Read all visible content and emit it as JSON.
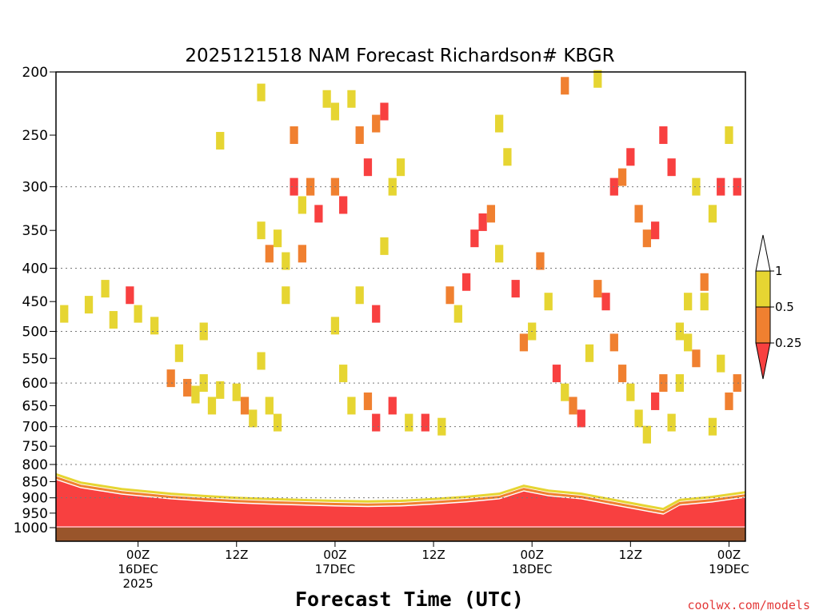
{
  "chart_data": {
    "type": "heatmap",
    "title": "2025121518 NAM Forecast Richardson# KBGR",
    "xlabel": "Forecast Time (UTC)",
    "ylabel": "",
    "credit": "coolwx.com/models",
    "y_scale": "log-pressure",
    "y_axis_inverted": true,
    "ylim_hPa": [
      1030,
      200
    ],
    "yticks": [
      "200",
      "250",
      "300",
      "350",
      "400",
      "450",
      "500",
      "550",
      "600",
      "650",
      "700",
      "750",
      "800",
      "850",
      "900",
      "950",
      "1000"
    ],
    "ytick_values": [
      200,
      250,
      300,
      350,
      400,
      450,
      500,
      550,
      600,
      650,
      700,
      750,
      800,
      850,
      900,
      950,
      1000
    ],
    "gridlines_hPa": [
      300,
      400,
      500,
      600,
      700,
      800,
      900
    ],
    "grid": "dotted",
    "x_unit": "forecast hour",
    "xlim_hours": [
      -4,
      80
    ],
    "xticks": [
      {
        "hour": 6,
        "lines": [
          "00Z",
          "16DEC",
          "2025"
        ]
      },
      {
        "hour": 18,
        "lines": [
          "12Z"
        ]
      },
      {
        "hour": 30,
        "lines": [
          "00Z",
          "17DEC"
        ]
      },
      {
        "hour": 42,
        "lines": [
          "12Z"
        ]
      },
      {
        "hour": 54,
        "lines": [
          "00Z",
          "18DEC"
        ]
      },
      {
        "hour": 66,
        "lines": [
          "12Z"
        ]
      },
      {
        "hour": 78,
        "lines": [
          "00Z",
          "19DEC"
        ]
      }
    ],
    "colorbar": {
      "labels": [
        "1",
        "0.5",
        "0.25"
      ],
      "bins": [
        {
          "range": "> 1",
          "color": "#ffffff"
        },
        {
          "range": "0.5 - 1",
          "color": "#e6d532"
        },
        {
          "range": "0.25 - 0.5",
          "color": "#f08030"
        },
        {
          "range": "< 0.25",
          "color": "#f84040"
        }
      ]
    },
    "boundary_layer_top_hPa": [
      {
        "hour": -4,
        "p": 845
      },
      {
        "hour": -1,
        "p": 870
      },
      {
        "hour": 4,
        "p": 890
      },
      {
        "hour": 10,
        "p": 905
      },
      {
        "hour": 14,
        "p": 912
      },
      {
        "hour": 18,
        "p": 918
      },
      {
        "hour": 22,
        "p": 922
      },
      {
        "hour": 26,
        "p": 925
      },
      {
        "hour": 30,
        "p": 928
      },
      {
        "hour": 34,
        "p": 930
      },
      {
        "hour": 38,
        "p": 928
      },
      {
        "hour": 42,
        "p": 922
      },
      {
        "hour": 46,
        "p": 915
      },
      {
        "hour": 50,
        "p": 905
      },
      {
        "hour": 53,
        "p": 880
      },
      {
        "hour": 56,
        "p": 895
      },
      {
        "hour": 60,
        "p": 905
      },
      {
        "hour": 64,
        "p": 925
      },
      {
        "hour": 68,
        "p": 945
      },
      {
        "hour": 70,
        "p": 955
      },
      {
        "hour": 72,
        "p": 925
      },
      {
        "hour": 76,
        "p": 915
      },
      {
        "hour": 80,
        "p": 900
      }
    ],
    "cells": [
      {
        "hour": -3,
        "p": 470,
        "cat": "y"
      },
      {
        "hour": 0,
        "p": 455,
        "cat": "y"
      },
      {
        "hour": 2,
        "p": 430,
        "cat": "y"
      },
      {
        "hour": 3,
        "p": 480,
        "cat": "y"
      },
      {
        "hour": 5,
        "p": 440,
        "cat": "r"
      },
      {
        "hour": 6,
        "p": 470,
        "cat": "y"
      },
      {
        "hour": 8,
        "p": 490,
        "cat": "y"
      },
      {
        "hour": 10,
        "p": 590,
        "cat": "o"
      },
      {
        "hour": 11,
        "p": 540,
        "cat": "y"
      },
      {
        "hour": 12,
        "p": 610,
        "cat": "o"
      },
      {
        "hour": 13,
        "p": 625,
        "cat": "y"
      },
      {
        "hour": 14,
        "p": 500,
        "cat": "y"
      },
      {
        "hour": 14,
        "p": 600,
        "cat": "y"
      },
      {
        "hour": 15,
        "p": 650,
        "cat": "y"
      },
      {
        "hour": 16,
        "p": 615,
        "cat": "y"
      },
      {
        "hour": 18,
        "p": 620,
        "cat": "y"
      },
      {
        "hour": 19,
        "p": 650,
        "cat": "o"
      },
      {
        "hour": 20,
        "p": 680,
        "cat": "y"
      },
      {
        "hour": 21,
        "p": 555,
        "cat": "y"
      },
      {
        "hour": 22,
        "p": 650,
        "cat": "y"
      },
      {
        "hour": 23,
        "p": 690,
        "cat": "y"
      },
      {
        "hour": 24,
        "p": 440,
        "cat": "y"
      },
      {
        "hour": 21,
        "p": 350,
        "cat": "y"
      },
      {
        "hour": 22,
        "p": 380,
        "cat": "o"
      },
      {
        "hour": 23,
        "p": 360,
        "cat": "y"
      },
      {
        "hour": 24,
        "p": 390,
        "cat": "y"
      },
      {
        "hour": 25,
        "p": 250,
        "cat": "o"
      },
      {
        "hour": 25,
        "p": 300,
        "cat": "r"
      },
      {
        "hour": 26,
        "p": 320,
        "cat": "y"
      },
      {
        "hour": 26,
        "p": 380,
        "cat": "o"
      },
      {
        "hour": 27,
        "p": 300,
        "cat": "o"
      },
      {
        "hour": 28,
        "p": 330,
        "cat": "r"
      },
      {
        "hour": 29,
        "p": 220,
        "cat": "y"
      },
      {
        "hour": 30,
        "p": 230,
        "cat": "y"
      },
      {
        "hour": 30,
        "p": 300,
        "cat": "o"
      },
      {
        "hour": 31,
        "p": 320,
        "cat": "r"
      },
      {
        "hour": 32,
        "p": 220,
        "cat": "y"
      },
      {
        "hour": 33,
        "p": 250,
        "cat": "o"
      },
      {
        "hour": 34,
        "p": 280,
        "cat": "r"
      },
      {
        "hour": 35,
        "p": 240,
        "cat": "o"
      },
      {
        "hour": 36,
        "p": 230,
        "cat": "r"
      },
      {
        "hour": 37,
        "p": 300,
        "cat": "y"
      },
      {
        "hour": 38,
        "p": 280,
        "cat": "y"
      },
      {
        "hour": 33,
        "p": 440,
        "cat": "y"
      },
      {
        "hour": 35,
        "p": 470,
        "cat": "r"
      },
      {
        "hour": 36,
        "p": 370,
        "cat": "y"
      },
      {
        "hour": 30,
        "p": 490,
        "cat": "y"
      },
      {
        "hour": 31,
        "p": 580,
        "cat": "y"
      },
      {
        "hour": 32,
        "p": 650,
        "cat": "y"
      },
      {
        "hour": 34,
        "p": 640,
        "cat": "o"
      },
      {
        "hour": 35,
        "p": 690,
        "cat": "r"
      },
      {
        "hour": 37,
        "p": 650,
        "cat": "r"
      },
      {
        "hour": 39,
        "p": 690,
        "cat": "y"
      },
      {
        "hour": 41,
        "p": 690,
        "cat": "r"
      },
      {
        "hour": 43,
        "p": 700,
        "cat": "y"
      },
      {
        "hour": 44,
        "p": 440,
        "cat": "o"
      },
      {
        "hour": 45,
        "p": 470,
        "cat": "y"
      },
      {
        "hour": 46,
        "p": 420,
        "cat": "r"
      },
      {
        "hour": 47,
        "p": 360,
        "cat": "r"
      },
      {
        "hour": 48,
        "p": 340,
        "cat": "r"
      },
      {
        "hour": 49,
        "p": 330,
        "cat": "o"
      },
      {
        "hour": 50,
        "p": 380,
        "cat": "y"
      },
      {
        "hour": 50,
        "p": 240,
        "cat": "y"
      },
      {
        "hour": 51,
        "p": 270,
        "cat": "y"
      },
      {
        "hour": 52,
        "p": 430,
        "cat": "r"
      },
      {
        "hour": 53,
        "p": 520,
        "cat": "o"
      },
      {
        "hour": 54,
        "p": 500,
        "cat": "y"
      },
      {
        "hour": 55,
        "p": 390,
        "cat": "o"
      },
      {
        "hour": 56,
        "p": 450,
        "cat": "y"
      },
      {
        "hour": 57,
        "p": 580,
        "cat": "r"
      },
      {
        "hour": 58,
        "p": 620,
        "cat": "y"
      },
      {
        "hour": 59,
        "p": 650,
        "cat": "o"
      },
      {
        "hour": 60,
        "p": 680,
        "cat": "r"
      },
      {
        "hour": 61,
        "p": 540,
        "cat": "y"
      },
      {
        "hour": 62,
        "p": 430,
        "cat": "o"
      },
      {
        "hour": 63,
        "p": 450,
        "cat": "r"
      },
      {
        "hour": 64,
        "p": 520,
        "cat": "o"
      },
      {
        "hour": 65,
        "p": 580,
        "cat": "o"
      },
      {
        "hour": 66,
        "p": 620,
        "cat": "y"
      },
      {
        "hour": 67,
        "p": 680,
        "cat": "y"
      },
      {
        "hour": 68,
        "p": 720,
        "cat": "y"
      },
      {
        "hour": 69,
        "p": 640,
        "cat": "r"
      },
      {
        "hour": 70,
        "p": 600,
        "cat": "o"
      },
      {
        "hour": 64,
        "p": 300,
        "cat": "r"
      },
      {
        "hour": 65,
        "p": 290,
        "cat": "o"
      },
      {
        "hour": 66,
        "p": 270,
        "cat": "r"
      },
      {
        "hour": 67,
        "p": 330,
        "cat": "o"
      },
      {
        "hour": 68,
        "p": 360,
        "cat": "o"
      },
      {
        "hour": 69,
        "p": 350,
        "cat": "r"
      },
      {
        "hour": 70,
        "p": 250,
        "cat": "r"
      },
      {
        "hour": 71,
        "p": 280,
        "cat": "r"
      },
      {
        "hour": 72,
        "p": 500,
        "cat": "y"
      },
      {
        "hour": 73,
        "p": 520,
        "cat": "y"
      },
      {
        "hour": 74,
        "p": 300,
        "cat": "y"
      },
      {
        "hour": 75,
        "p": 450,
        "cat": "y"
      },
      {
        "hour": 76,
        "p": 330,
        "cat": "y"
      },
      {
        "hour": 77,
        "p": 300,
        "cat": "r"
      },
      {
        "hour": 78,
        "p": 250,
        "cat": "y"
      },
      {
        "hour": 79,
        "p": 300,
        "cat": "r"
      },
      {
        "hour": 79,
        "p": 600,
        "cat": "o"
      },
      {
        "hour": 78,
        "p": 640,
        "cat": "o"
      },
      {
        "hour": 77,
        "p": 560,
        "cat": "y"
      },
      {
        "hour": 76,
        "p": 700,
        "cat": "y"
      },
      {
        "hour": 75,
        "p": 420,
        "cat": "o"
      },
      {
        "hour": 74,
        "p": 550,
        "cat": "o"
      },
      {
        "hour": 73,
        "p": 450,
        "cat": "y"
      },
      {
        "hour": 72,
        "p": 600,
        "cat": "y"
      },
      {
        "hour": 71,
        "p": 690,
        "cat": "y"
      },
      {
        "hour": 16,
        "p": 255,
        "cat": "y"
      },
      {
        "hour": 21,
        "p": 215,
        "cat": "y"
      },
      {
        "hour": 58,
        "p": 210,
        "cat": "o"
      },
      {
        "hour": 62,
        "p": 205,
        "cat": "y"
      }
    ]
  }
}
